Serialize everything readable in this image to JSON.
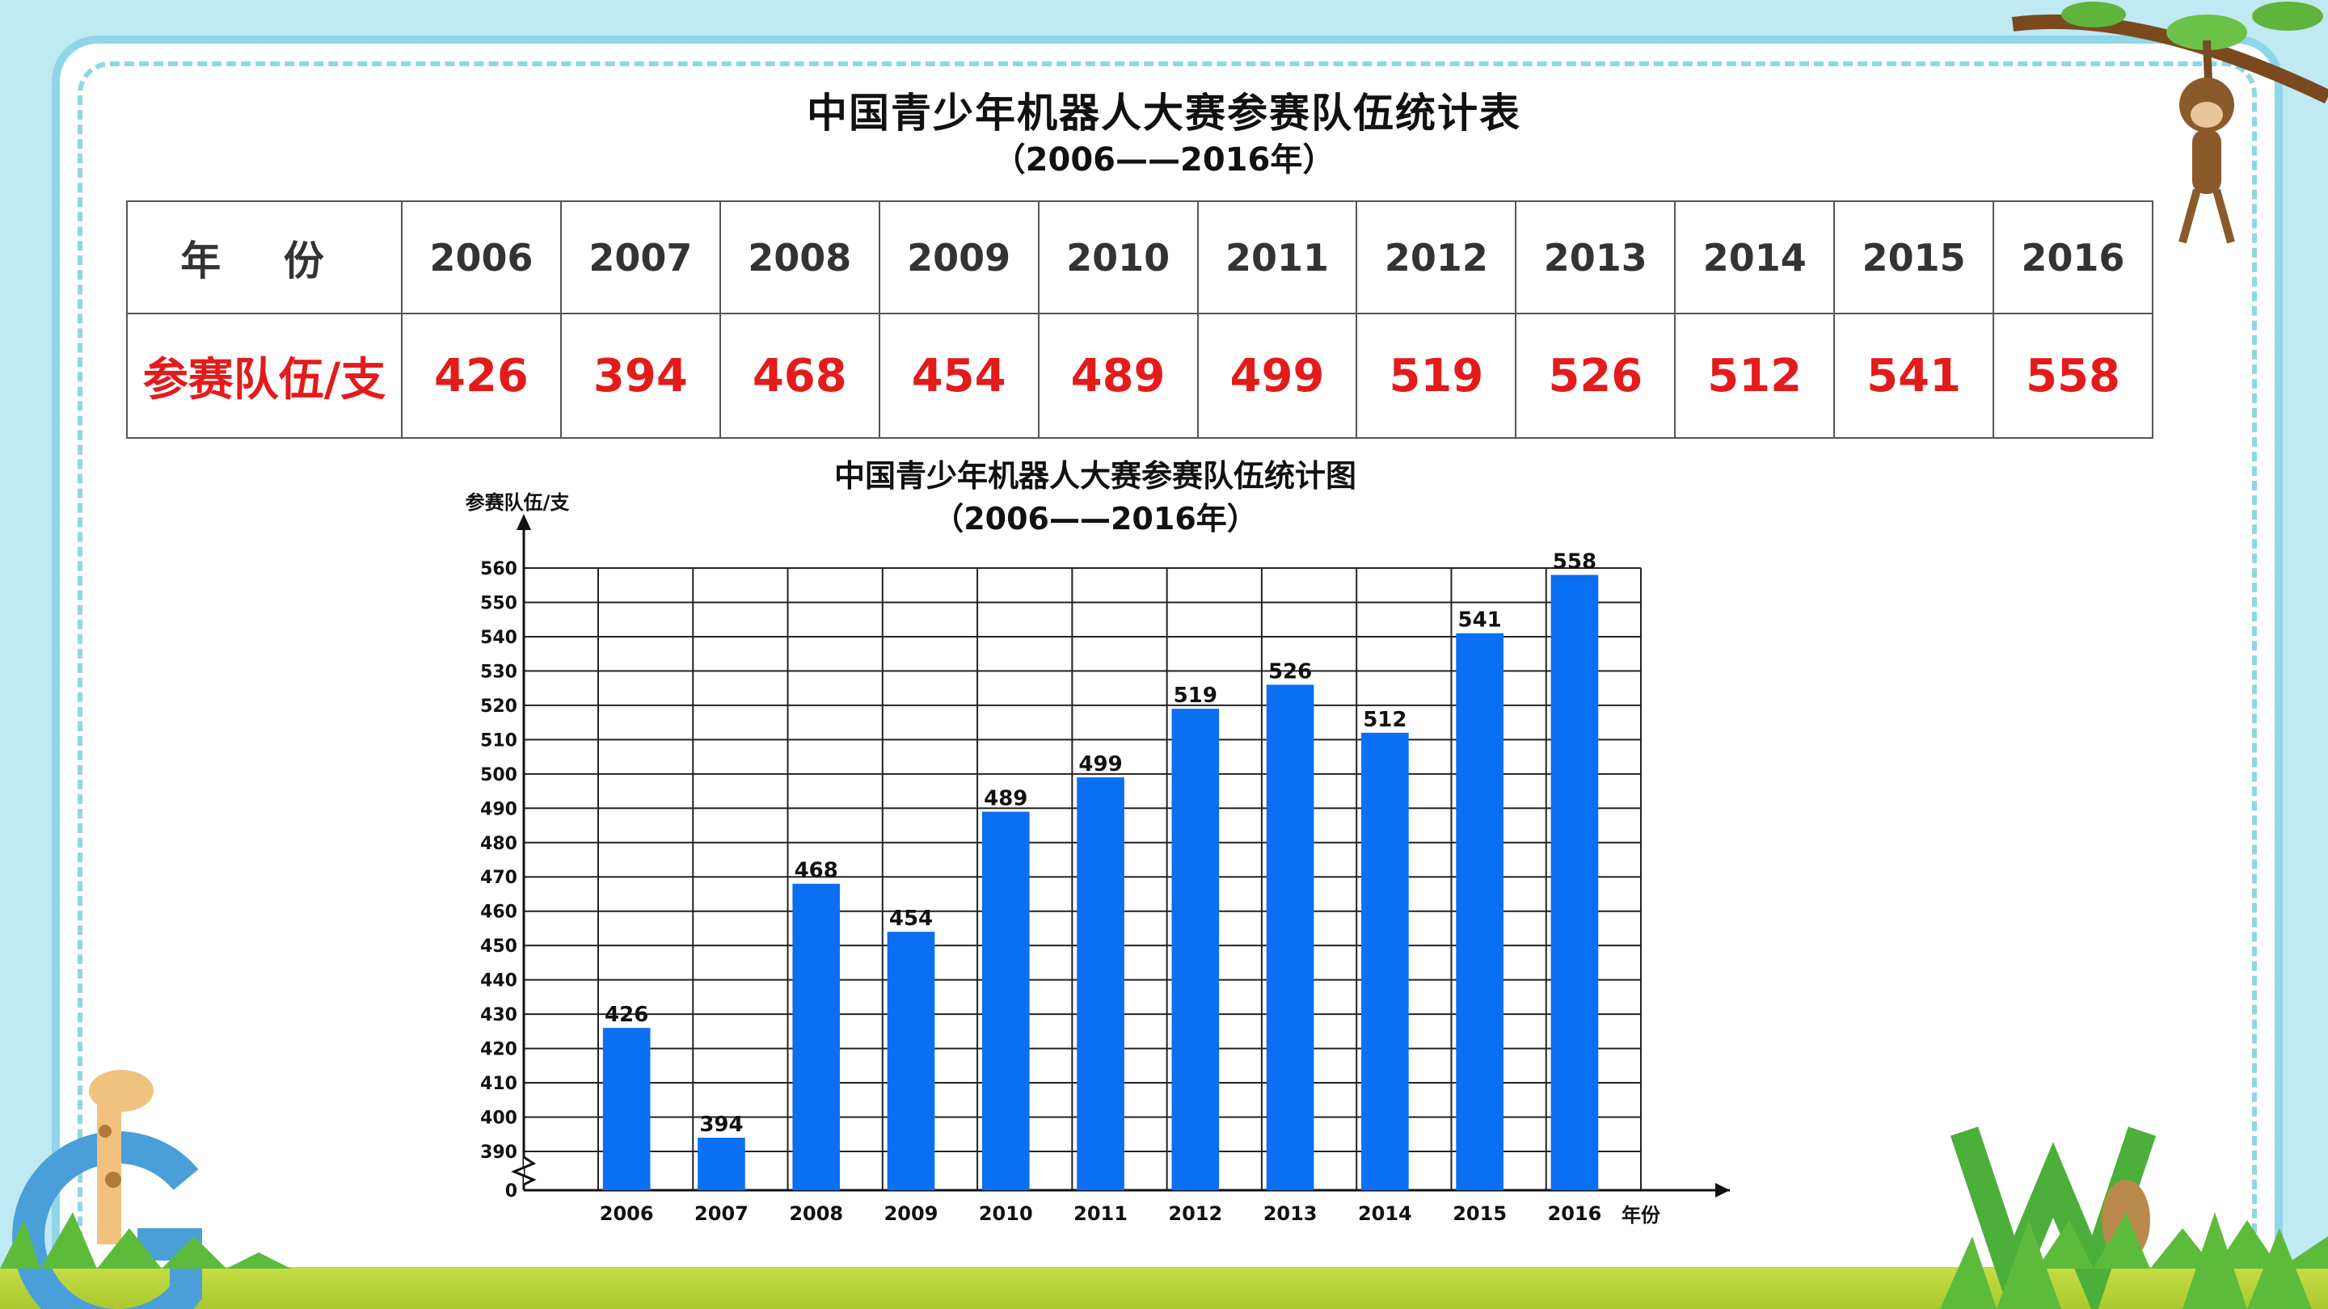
{
  "table": {
    "title": "中国青少年机器人大赛参赛队伍统计表",
    "subtitle": "（2006——2016年）",
    "row_header_year": "年 份",
    "row_header_value": "参赛队伍/支",
    "years": [
      "2006",
      "2007",
      "2008",
      "2009",
      "2010",
      "2011",
      "2012",
      "2013",
      "2014",
      "2015",
      "2016"
    ],
    "values": [
      "426",
      "394",
      "468",
      "454",
      "489",
      "499",
      "519",
      "526",
      "512",
      "541",
      "558"
    ]
  },
  "chart_data": {
    "type": "bar",
    "title": "中国青少年机器人大赛参赛队伍统计图",
    "subtitle": "（2006——2016年）",
    "xlabel": "年份",
    "ylabel": "参赛队伍/支",
    "categories": [
      "2006",
      "2007",
      "2008",
      "2009",
      "2010",
      "2011",
      "2012",
      "2013",
      "2014",
      "2015",
      "2016"
    ],
    "values": [
      426,
      394,
      468,
      454,
      489,
      499,
      519,
      526,
      512,
      541,
      558
    ],
    "y_ticks": [
      0,
      390,
      400,
      410,
      420,
      430,
      440,
      450,
      460,
      470,
      480,
      490,
      500,
      510,
      520,
      530,
      540,
      550,
      560
    ],
    "ylim": [
      390,
      560
    ],
    "axis_break": true,
    "grid": true,
    "bar_color": "#0a6ff2",
    "show_value_labels": true
  },
  "colors": {
    "table_values": "#e31b1b",
    "frame": "#8fd6e6",
    "background": "#bfe9f3"
  }
}
